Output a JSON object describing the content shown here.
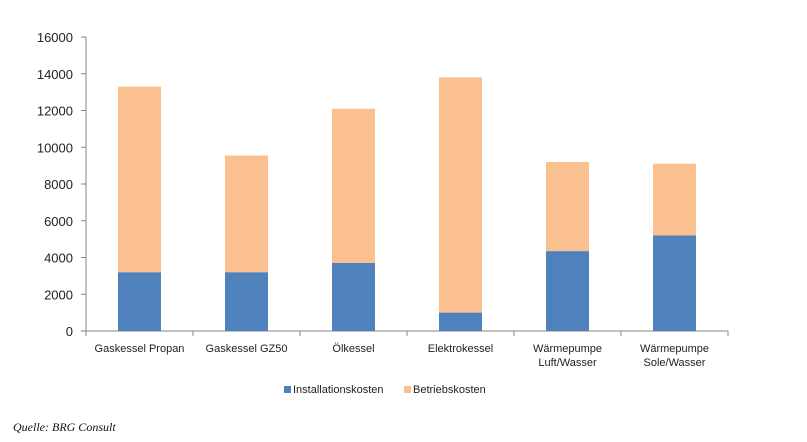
{
  "chart_data": {
    "type": "bar",
    "stacked": true,
    "categories": [
      [
        "Gaskessel Propan"
      ],
      [
        "Gaskessel GZ50"
      ],
      [
        "Ölkessel"
      ],
      [
        "Elektrokessel"
      ],
      [
        "Wärmepumpe",
        "Luft/Wasser"
      ],
      [
        "Wärmepumpe",
        "Sole/Wasser"
      ]
    ],
    "series": [
      {
        "name": "Installationskosten",
        "color": "#4F81BD",
        "values": [
          3200,
          3200,
          3700,
          1000,
          4350,
          5200
        ]
      },
      {
        "name": "Betriebskosten",
        "color": "#FAC090",
        "values": [
          10100,
          6350,
          8400,
          12800,
          4850,
          3900
        ]
      }
    ],
    "yticks": [
      0,
      2000,
      4000,
      6000,
      8000,
      10000,
      12000,
      14000,
      16000
    ],
    "ylim": [
      0,
      16000
    ],
    "grid": false,
    "legend_position": "bottom"
  },
  "source": "Quelle: BRG Consult"
}
